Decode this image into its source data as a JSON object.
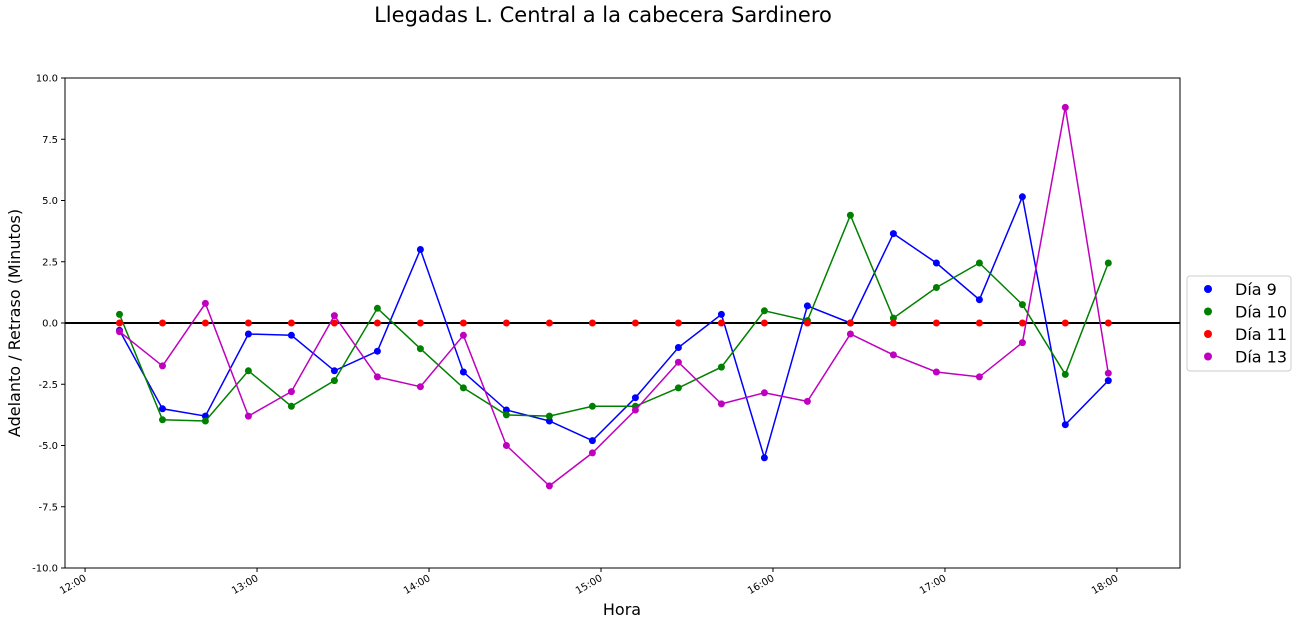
{
  "chart_data": {
    "type": "line",
    "title": "Llegadas L. Central a la cabecera Sardinero",
    "xlabel": "Hora",
    "ylabel": "Adelanto / Retraso (Minutos)",
    "xlim": [
      "11:53",
      "18:22"
    ],
    "ylim": [
      -10,
      10
    ],
    "x_ticks": [
      "12:00",
      "13:00",
      "14:00",
      "15:00",
      "16:00",
      "17:00",
      "18:00"
    ],
    "y_ticks": [
      "-10.0",
      "-7.5",
      "-5.0",
      "-2.5",
      "0.0",
      "2.5",
      "5.0",
      "7.5",
      "10.0"
    ],
    "reference_line": 0,
    "grid": false,
    "legend_position": "right",
    "x": [
      "12:12",
      "12:27",
      "12:42",
      "12:57",
      "13:12",
      "13:27",
      "13:42",
      "13:57",
      "14:12",
      "14:27",
      "14:42",
      "14:57",
      "15:12",
      "15:27",
      "15:42",
      "15:57",
      "16:12",
      "16:27",
      "16:42",
      "16:57",
      "17:12",
      "17:27",
      "17:42",
      "17:57"
    ],
    "series": [
      {
        "name": "Día 9",
        "color": "#0000ff",
        "line": true,
        "x": [
          "12:12",
          "12:27",
          "12:42",
          "12:57",
          "13:12",
          "13:27",
          "13:42",
          "13:57",
          "14:12",
          "14:27",
          "14:42",
          "14:57",
          "15:12",
          "15:27",
          "15:42",
          "15:57",
          "16:12",
          "16:27",
          "16:42",
          "16:57",
          "17:12",
          "17:27",
          "17:42",
          "17:57"
        ],
        "values": [
          -0.3,
          -3.5,
          -3.8,
          -0.45,
          -0.5,
          -1.95,
          -1.15,
          3.0,
          -2.0,
          -3.55,
          -4.0,
          -4.8,
          -3.05,
          -1.0,
          0.35,
          -5.5,
          0.7,
          0.0,
          3.65,
          2.45,
          0.95,
          5.15,
          -4.15,
          -2.35
        ]
      },
      {
        "name": "Día 10",
        "color": "#008000",
        "line": true,
        "x": [
          "12:12",
          "12:27",
          "12:42",
          "12:57",
          "13:12",
          "13:27",
          "13:42",
          "13:57",
          "14:12",
          "14:27",
          "14:42",
          "14:57",
          "15:12",
          "15:27",
          "15:42",
          "15:57",
          "16:12",
          "16:27",
          "16:42",
          "16:57",
          "17:12",
          "17:27",
          "17:42",
          "17:57"
        ],
        "values": [
          0.35,
          -3.95,
          -4.0,
          -1.95,
          -3.4,
          -2.35,
          0.6,
          -1.05,
          -2.65,
          -3.75,
          -3.8,
          -3.4,
          -3.4,
          -2.65,
          -1.8,
          0.5,
          0.1,
          4.4,
          0.2,
          1.45,
          2.45,
          0.75,
          -2.1,
          2.45
        ]
      },
      {
        "name": "Día 11",
        "color": "#ff0000",
        "line": false,
        "x": [
          "12:12",
          "12:27",
          "12:42",
          "12:57",
          "13:12",
          "13:27",
          "13:42",
          "13:57",
          "14:12",
          "14:27",
          "14:42",
          "14:57",
          "15:12",
          "15:27",
          "15:42",
          "15:57",
          "16:12",
          "16:27",
          "16:42",
          "16:57",
          "17:12",
          "17:27",
          "17:42",
          "17:57"
        ],
        "values": [
          0,
          0,
          0,
          0,
          0,
          0,
          0,
          0,
          0,
          0,
          0,
          0,
          0,
          0,
          0,
          0,
          0,
          0,
          0,
          0,
          0,
          0,
          0,
          0
        ]
      },
      {
        "name": "Día 13",
        "color": "#bf00bf",
        "line": true,
        "x": [
          "12:12",
          "12:27",
          "12:42",
          "12:57",
          "13:12",
          "13:27",
          "13:42",
          "13:57",
          "14:12",
          "14:27",
          "14:42",
          "14:57",
          "15:12",
          "15:27",
          "15:42",
          "15:57",
          "16:12",
          "16:27",
          "16:42",
          "16:57",
          "17:12",
          "17:27",
          "17:42",
          "17:57"
        ],
        "values": [
          -0.35,
          -1.75,
          0.8,
          -3.8,
          -2.8,
          0.3,
          -2.2,
          -2.6,
          -0.5,
          -5.0,
          -6.65,
          -5.3,
          -3.55,
          -1.6,
          -3.3,
          -2.85,
          -3.2,
          -0.45,
          -1.3,
          -2.0,
          -2.2,
          -0.8,
          8.8,
          -2.05
        ]
      }
    ]
  }
}
